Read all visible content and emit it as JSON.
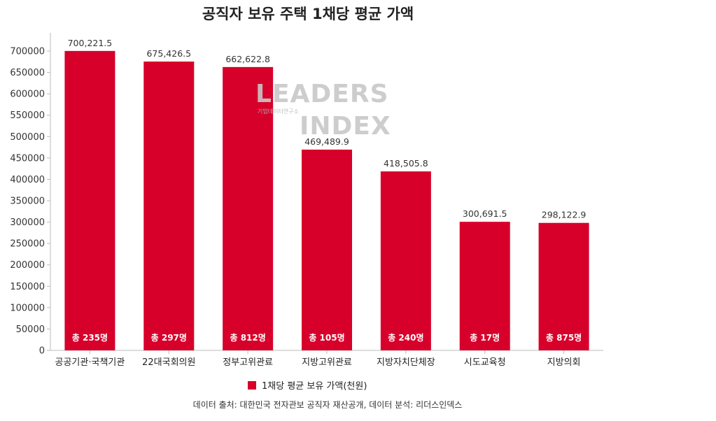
{
  "chart_data": {
    "type": "bar",
    "title": "공직자 보유 주택 1채당 평균 가액",
    "categories": [
      "공공기관·국책기관",
      "22대국회의원",
      "정부고위관료",
      "지방고위관료",
      "지방자치단체장",
      "시도교육청",
      "지방의회"
    ],
    "series": [
      {
        "name": "1채당 평균 보유 가액(천원)",
        "values": [
          700221.5,
          675426.5,
          662622.8,
          469489.9,
          418505.8,
          300691.5,
          298122.9
        ],
        "labels": [
          "700,221.5",
          "675,426.5",
          "662,622.8",
          "469,489.9",
          "418,505.8",
          "300,691.5",
          "298,122.9"
        ],
        "color": "#d7002a"
      }
    ],
    "counts": [
      "총 235명",
      "총 297명",
      "총 812명",
      "총 105명",
      "총 240명",
      "총 17명",
      "총 875명"
    ],
    "ylim": [
      0,
      700000
    ],
    "yticks": [
      0,
      50000,
      100000,
      150000,
      200000,
      250000,
      300000,
      350000,
      400000,
      450000,
      500000,
      550000,
      600000,
      650000,
      700000
    ],
    "xlabel": "",
    "ylabel": "",
    "legend_position": "bottom",
    "grid": false
  },
  "source_note": "데이터 출처: 대한민국 전자관보 공직자 재산공개, 데이터 분석: 리더스인덱스",
  "watermark": {
    "line1": "LEADERS",
    "line2": "INDEX",
    "sub": "기업데이터연구소"
  }
}
